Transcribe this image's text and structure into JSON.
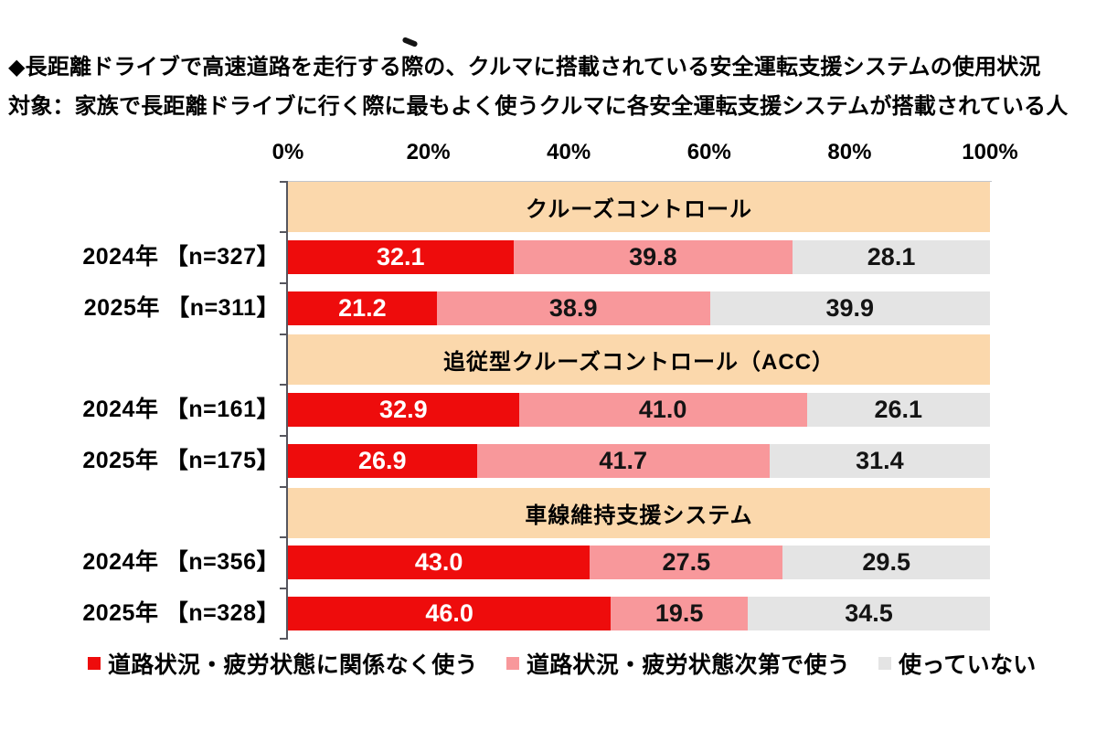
{
  "title": "◆長距離ドライブで高速道路を走行する際の、クルマに搭載されている安全運転支援システムの使用状況",
  "subtitle": "対象：家族で長距離ドライブに行く際に最もよく使うクルマに各安全運転支援システムが搭載されている人",
  "axis_ticks": [
    "0%",
    "20%",
    "40%",
    "60%",
    "80%",
    "100%"
  ],
  "colors": {
    "series_red": "#ee0c0c",
    "series_pink": "#f8989b",
    "series_gray": "#e4e4e4",
    "header_band": "#fbd8ac",
    "axis_line": "#56565e"
  },
  "legend": {
    "items": [
      {
        "label": "道路状況・疲労状態に関係なく使う",
        "color": "#ee0c0c"
      },
      {
        "label": "道路状況・疲労状態次第で使う",
        "color": "#f8989b"
      },
      {
        "label": "使っていない",
        "color": "#e4e4e4"
      }
    ]
  },
  "chart_data": {
    "type": "bar",
    "orientation": "horizontal",
    "stacked": true,
    "xlim": [
      0,
      100
    ],
    "x_ticks": [
      "0%",
      "20%",
      "40%",
      "60%",
      "80%",
      "100%"
    ],
    "series_names": [
      "道路状況・疲労状態に関係なく使う",
      "道路状況・疲労状態次第で使う",
      "使っていない"
    ],
    "series_colors": [
      "#ee0c0c",
      "#f8989b",
      "#e4e4e4"
    ],
    "groups": [
      {
        "label": "クルーズコントロール",
        "rows": [
          {
            "label": "2024年 【n=327】",
            "values": [
              32.1,
              39.8,
              28.1
            ],
            "value_labels": [
              "32.1",
              "39.8",
              "28.1"
            ]
          },
          {
            "label": "2025年 【n=311】",
            "values": [
              21.2,
              38.9,
              39.9
            ],
            "value_labels": [
              "21.2",
              "38.9",
              "39.9"
            ]
          }
        ]
      },
      {
        "label": "追従型クルーズコントロール（ACC）",
        "rows": [
          {
            "label": "2024年 【n=161】",
            "values": [
              32.9,
              41.0,
              26.1
            ],
            "value_labels": [
              "32.9",
              "41.0",
              "26.1"
            ]
          },
          {
            "label": "2025年 【n=175】",
            "values": [
              26.9,
              41.7,
              31.4
            ],
            "value_labels": [
              "26.9",
              "41.7",
              "31.4"
            ]
          }
        ]
      },
      {
        "label": "車線維持支援システム",
        "rows": [
          {
            "label": "2024年 【n=356】",
            "values": [
              43.0,
              27.5,
              29.5
            ],
            "value_labels": [
              "43.0",
              "27.5",
              "29.5"
            ]
          },
          {
            "label": "2025年 【n=328】",
            "values": [
              46.0,
              19.5,
              34.5
            ],
            "value_labels": [
              "46.0",
              "19.5",
              "34.5"
            ]
          }
        ]
      }
    ]
  }
}
